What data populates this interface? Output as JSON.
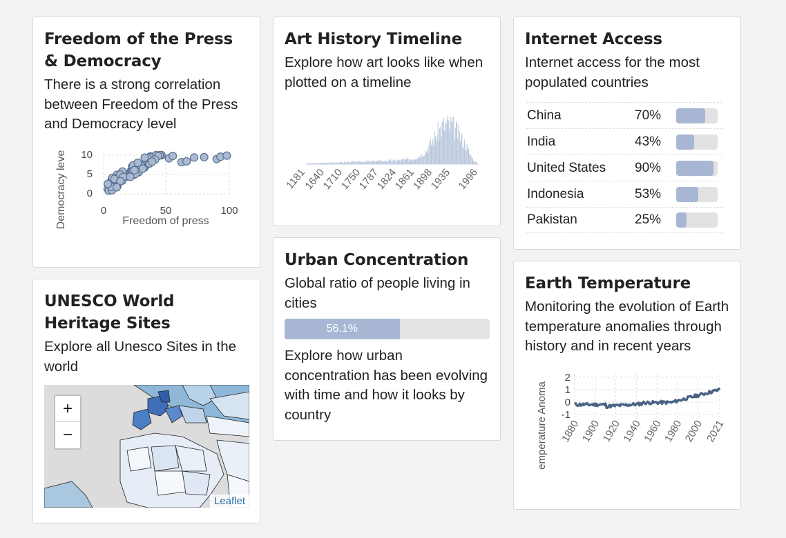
{
  "cards": {
    "press": {
      "title": "Freedom of the Press & Democracy",
      "desc": "There is a strong correlation between Freedom of the Press and Democracy level",
      "chart": {
        "xlabel": "Freedom of press",
        "ylabel": "Democracy leve",
        "xticks": [
          "0",
          "50",
          "100"
        ],
        "yticks": [
          "10",
          "5",
          "0"
        ]
      }
    },
    "art": {
      "title": "Art History Timeline",
      "desc": "Explore how art looks like when plotted on a timeline",
      "chart": {
        "xticks": [
          "1181",
          "1640",
          "1710",
          "1750",
          "1787",
          "1824",
          "1861",
          "1898",
          "1935",
          "1996"
        ]
      }
    },
    "internet": {
      "title": "Internet Access",
      "desc": "Internet access for the most populated countries",
      "rows": [
        {
          "country": "China",
          "value": "70%",
          "pct": 70
        },
        {
          "country": "India",
          "value": "43%",
          "pct": 43
        },
        {
          "country": "United States",
          "value": "90%",
          "pct": 90
        },
        {
          "country": "Indonesia",
          "value": "53%",
          "pct": 53
        },
        {
          "country": "Pakistan",
          "value": "25%",
          "pct": 25
        }
      ]
    },
    "urban": {
      "title": "Urban Concentration",
      "desc": "Global ratio of people living in cities",
      "bar_label": "56.1%",
      "bar_pct": 56.1,
      "desc2": "Explore how urban concentration has been evolving with time and how it looks by country"
    },
    "unesco": {
      "title": "UNESCO World Heritage Sites",
      "desc": "Explore all Unesco Sites in the world",
      "zoom_in": "+",
      "zoom_out": "−",
      "attribution": "Leaflet"
    },
    "earth": {
      "title": "Earth Temperature",
      "desc": "Monitoring the evolution of Earth temperature anomalies through history and in recent years",
      "chart": {
        "ylabel": "emperature Anoma",
        "yticks": [
          "2",
          "1",
          "0",
          "-1"
        ],
        "xticks": [
          "1880",
          "1900",
          "1920",
          "1940",
          "1960",
          "1980",
          "2000",
          "2021"
        ]
      }
    }
  },
  "colors": {
    "accent": "#a7b7d3",
    "dark_series": "#4a6285",
    "point_fill": "#a9bad2",
    "point_stroke": "#5a6f8f"
  }
}
